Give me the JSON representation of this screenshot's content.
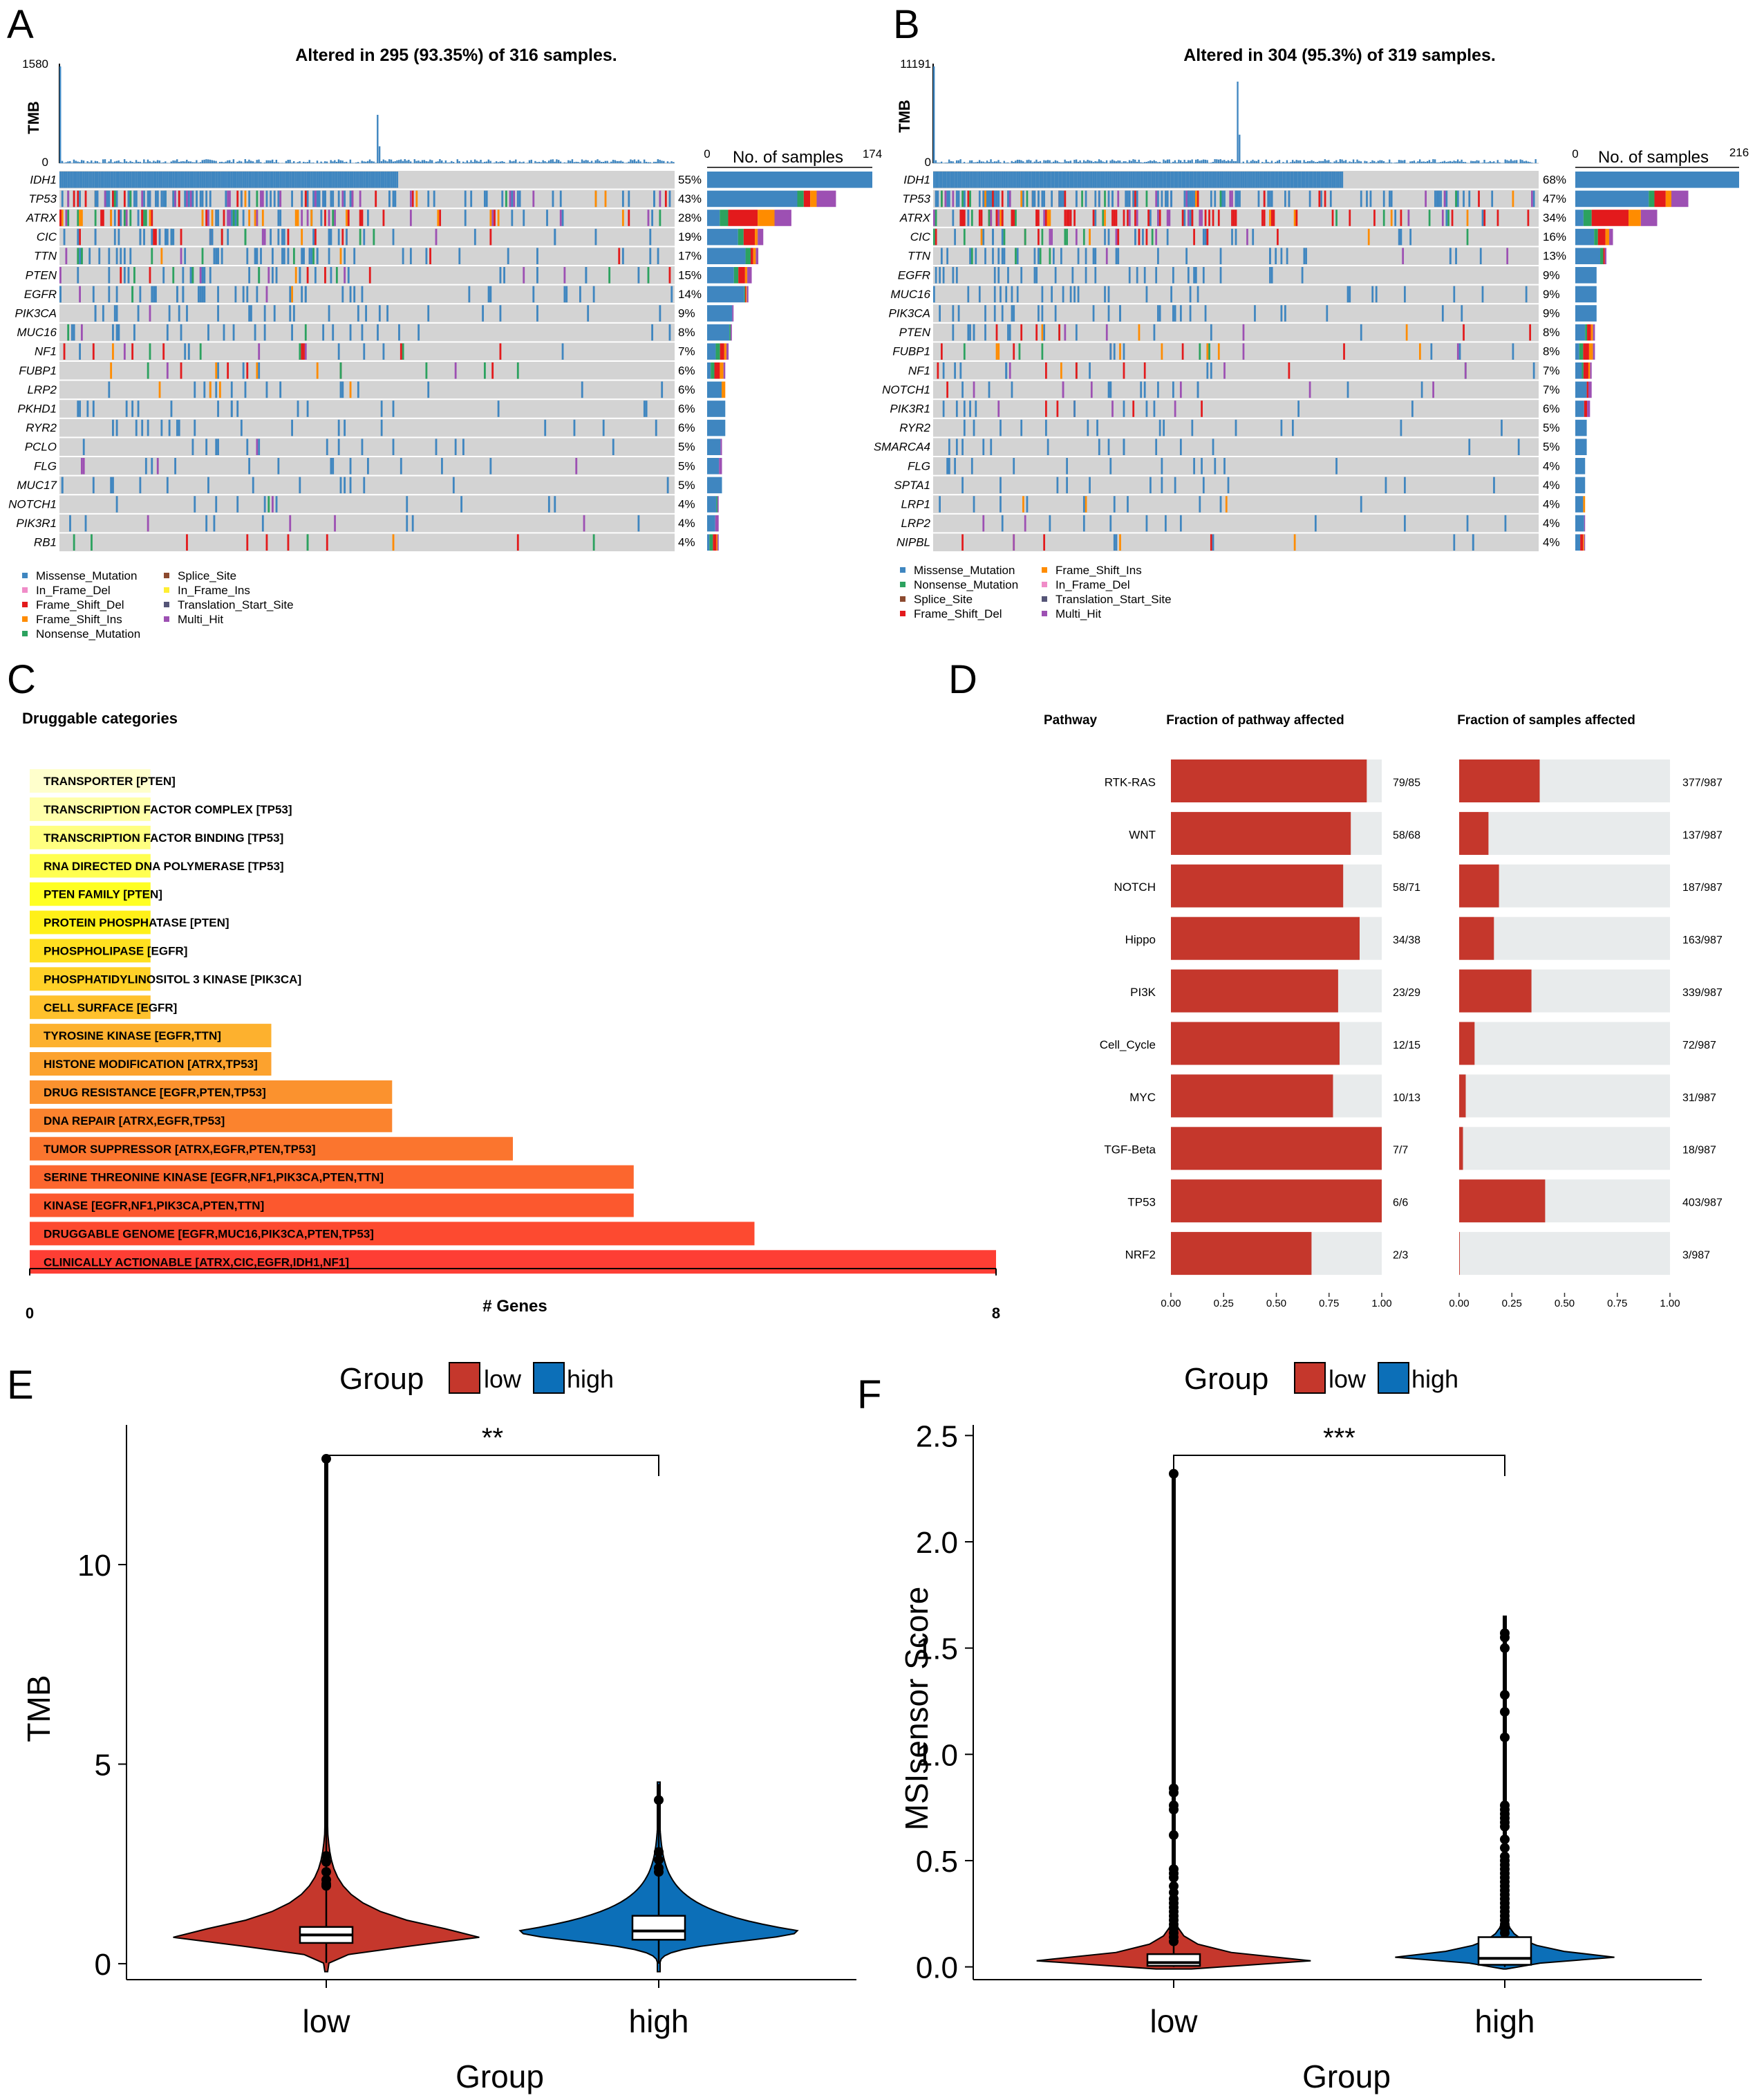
{
  "figure": {
    "panel_letters": [
      "A",
      "B",
      "C",
      "D",
      "E",
      "F"
    ],
    "colors": {
      "missense": "#3f86c0",
      "nonsense": "#2ca25f",
      "splice": "#8c4a2f",
      "frameshift_del": "#e31a1c",
      "frameshift_ins": "#ff8c00",
      "inframe_del": "#f08cc8",
      "inframe_ins": "#ffee33",
      "translation_start": "#555577",
      "multi_hit": "#9d50b3",
      "grid_bg": "#d3d3d3",
      "pathway_red": "#c5372c",
      "pathway_bg": "#e8ebec",
      "violin_low": "#c5372c",
      "violin_high": "#0c6fb8"
    }
  },
  "chart_data": [
    {
      "panel": "A",
      "type": "table",
      "title": "Altered in 295 (93.35%) of 316 samples.",
      "tmb_label": "TMB",
      "tmb_axis": [
        "1580",
        "0"
      ],
      "sample_axis": [
        "0",
        "174"
      ],
      "sample_axis_label": "No. of samples",
      "genes": [
        {
          "name": "IDH1",
          "pct": "55%",
          "frac": 1.0,
          "comp": [
            1,
            0,
            0,
            0,
            0
          ]
        },
        {
          "name": "TP53",
          "pct": "43%",
          "frac": 0.78,
          "comp": [
            0.7,
            0.05,
            0.05,
            0.05,
            0.15
          ]
        },
        {
          "name": "ATRX",
          "pct": "28%",
          "frac": 0.51,
          "comp": [
            0.15,
            0.1,
            0.35,
            0.2,
            0.2
          ]
        },
        {
          "name": "CIC",
          "pct": "19%",
          "frac": 0.34,
          "comp": [
            0.55,
            0.1,
            0.2,
            0.05,
            0.1
          ]
        },
        {
          "name": "TTN",
          "pct": "17%",
          "frac": 0.31,
          "comp": [
            0.75,
            0.1,
            0.05,
            0.05,
            0.05
          ]
        },
        {
          "name": "PTEN",
          "pct": "15%",
          "frac": 0.27,
          "comp": [
            0.6,
            0.1,
            0.15,
            0.05,
            0.1
          ]
        },
        {
          "name": "EGFR",
          "pct": "14%",
          "frac": 0.25,
          "comp": [
            0.9,
            0.02,
            0.02,
            0.02,
            0.04
          ]
        },
        {
          "name": "PIK3CA",
          "pct": "9%",
          "frac": 0.16,
          "comp": [
            0.95,
            0,
            0,
            0,
            0.05
          ]
        },
        {
          "name": "MUC16",
          "pct": "8%",
          "frac": 0.15,
          "comp": [
            0.9,
            0.05,
            0,
            0,
            0.05
          ]
        },
        {
          "name": "NF1",
          "pct": "7%",
          "frac": 0.13,
          "comp": [
            0.4,
            0.2,
            0.2,
            0.1,
            0.1
          ]
        },
        {
          "name": "FUBP1",
          "pct": "6%",
          "frac": 0.11,
          "comp": [
            0.2,
            0.2,
            0.3,
            0.2,
            0.1
          ]
        },
        {
          "name": "LRP2",
          "pct": "6%",
          "frac": 0.11,
          "comp": [
            0.8,
            0,
            0,
            0.2,
            0
          ]
        },
        {
          "name": "PKHD1",
          "pct": "6%",
          "frac": 0.11,
          "comp": [
            1,
            0,
            0,
            0,
            0
          ]
        },
        {
          "name": "RYR2",
          "pct": "6%",
          "frac": 0.11,
          "comp": [
            1,
            0,
            0,
            0,
            0
          ]
        },
        {
          "name": "PCLO",
          "pct": "5%",
          "frac": 0.09,
          "comp": [
            0.9,
            0,
            0,
            0,
            0.1
          ]
        },
        {
          "name": "FLG",
          "pct": "5%",
          "frac": 0.09,
          "comp": [
            0.8,
            0,
            0,
            0,
            0.2
          ]
        },
        {
          "name": "MUC17",
          "pct": "5%",
          "frac": 0.09,
          "comp": [
            1,
            0,
            0,
            0,
            0
          ]
        },
        {
          "name": "NOTCH1",
          "pct": "4%",
          "frac": 0.07,
          "comp": [
            0.8,
            0.1,
            0,
            0,
            0.1
          ]
        },
        {
          "name": "PIK3R1",
          "pct": "4%",
          "frac": 0.07,
          "comp": [
            0.7,
            0,
            0,
            0,
            0.3
          ]
        },
        {
          "name": "RB1",
          "pct": "4%",
          "frac": 0.07,
          "comp": [
            0.2,
            0.3,
            0.3,
            0.1,
            0.1
          ]
        }
      ],
      "legend": [
        "Missense_Mutation",
        "In_Frame_Del",
        "Frame_Shift_Del",
        "Frame_Shift_Ins",
        "Nonsense_Mutation",
        "Splice_Site",
        "In_Frame_Ins",
        "Translation_Start_Site",
        "Multi_Hit"
      ]
    },
    {
      "panel": "B",
      "type": "table",
      "title": "Altered in 304 (95.3%) of 319 samples.",
      "tmb_label": "TMB",
      "tmb_axis": [
        "11191",
        "0"
      ],
      "sample_axis": [
        "0",
        "216"
      ],
      "sample_axis_label": "No. of samples",
      "genes": [
        {
          "name": "IDH1",
          "pct": "68%",
          "frac": 1.0,
          "comp": [
            1,
            0,
            0,
            0,
            0
          ]
        },
        {
          "name": "TP53",
          "pct": "47%",
          "frac": 0.69,
          "comp": [
            0.65,
            0.05,
            0.1,
            0.05,
            0.15
          ]
        },
        {
          "name": "ATRX",
          "pct": "34%",
          "frac": 0.5,
          "comp": [
            0.1,
            0.1,
            0.45,
            0.15,
            0.2
          ]
        },
        {
          "name": "CIC",
          "pct": "16%",
          "frac": 0.23,
          "comp": [
            0.5,
            0.1,
            0.2,
            0.1,
            0.1
          ]
        },
        {
          "name": "TTN",
          "pct": "13%",
          "frac": 0.19,
          "comp": [
            0.8,
            0.1,
            0.05,
            0,
            0.05
          ]
        },
        {
          "name": "EGFR",
          "pct": "9%",
          "frac": 0.13,
          "comp": [
            1,
            0,
            0,
            0,
            0
          ]
        },
        {
          "name": "MUC16",
          "pct": "9%",
          "frac": 0.13,
          "comp": [
            1,
            0,
            0,
            0,
            0
          ]
        },
        {
          "name": "PIK3CA",
          "pct": "9%",
          "frac": 0.13,
          "comp": [
            1,
            0,
            0,
            0,
            0
          ]
        },
        {
          "name": "PTEN",
          "pct": "8%",
          "frac": 0.12,
          "comp": [
            0.5,
            0.1,
            0.2,
            0.1,
            0.1
          ]
        },
        {
          "name": "FUBP1",
          "pct": "8%",
          "frac": 0.12,
          "comp": [
            0.2,
            0.2,
            0.3,
            0.2,
            0.1
          ]
        },
        {
          "name": "NF1",
          "pct": "7%",
          "frac": 0.1,
          "comp": [
            0.4,
            0.1,
            0.3,
            0.1,
            0.1
          ]
        },
        {
          "name": "NOTCH1",
          "pct": "7%",
          "frac": 0.1,
          "comp": [
            0.7,
            0,
            0.1,
            0,
            0.2
          ]
        },
        {
          "name": "PIK3R1",
          "pct": "6%",
          "frac": 0.09,
          "comp": [
            0.6,
            0,
            0.2,
            0,
            0.2
          ]
        },
        {
          "name": "RYR2",
          "pct": "5%",
          "frac": 0.07,
          "comp": [
            1,
            0,
            0,
            0,
            0
          ]
        },
        {
          "name": "SMARCA4",
          "pct": "5%",
          "frac": 0.07,
          "comp": [
            1,
            0,
            0,
            0,
            0
          ]
        },
        {
          "name": "FLG",
          "pct": "4%",
          "frac": 0.06,
          "comp": [
            1,
            0,
            0,
            0,
            0
          ]
        },
        {
          "name": "SPTA1",
          "pct": "4%",
          "frac": 0.06,
          "comp": [
            1,
            0,
            0,
            0,
            0
          ]
        },
        {
          "name": "LRP1",
          "pct": "4%",
          "frac": 0.06,
          "comp": [
            0.8,
            0,
            0,
            0.2,
            0
          ]
        },
        {
          "name": "LRP2",
          "pct": "4%",
          "frac": 0.06,
          "comp": [
            0.9,
            0,
            0,
            0,
            0.1
          ]
        },
        {
          "name": "NIPBL",
          "pct": "4%",
          "frac": 0.06,
          "comp": [
            0.5,
            0,
            0.3,
            0.1,
            0.1
          ]
        }
      ],
      "legend": [
        "Missense_Mutation",
        "Nonsense_Mutation",
        "Splice_Site",
        "Frame_Shift_Del",
        "Frame_Shift_Ins",
        "In_Frame_Del",
        "Translation_Start_Site",
        "Multi_Hit"
      ]
    },
    {
      "panel": "C",
      "type": "bar",
      "title": "Druggable categories",
      "xlabel": "# Genes",
      "xlim": [
        0,
        8
      ],
      "x_ticks": [
        "0",
        "8"
      ],
      "bars": [
        {
          "label": "TRANSPORTER [PTEN]",
          "value": 1,
          "color": "#ffffcc"
        },
        {
          "label": "TRANSCRIPTION FACTOR COMPLEX [TP53]",
          "value": 1,
          "color": "#ffffaa"
        },
        {
          "label": "TRANSCRIPTION FACTOR BINDING [TP53]",
          "value": 1,
          "color": "#ffff80"
        },
        {
          "label": "RNA DIRECTED DNA POLYMERASE [TP53]",
          "value": 1,
          "color": "#ffff50"
        },
        {
          "label": "PTEN FAMILY [PTEN]",
          "value": 1,
          "color": "#ffff22"
        },
        {
          "label": "PROTEIN PHOSPHATASE [PTEN]",
          "value": 1,
          "color": "#fff018"
        },
        {
          "label": "PHOSPHOLIPASE [EGFR]",
          "value": 1,
          "color": "#ffe020"
        },
        {
          "label": "PHOSPHATIDYLINOSITOL 3 KINASE [PIK3CA]",
          "value": 1,
          "color": "#ffd128"
        },
        {
          "label": "CELL SURFACE [EGFR]",
          "value": 1,
          "color": "#ffc12c"
        },
        {
          "label": "TYROSINE KINASE [EGFR,TTN]",
          "value": 2,
          "color": "#fdb12e"
        },
        {
          "label": "HISTONE MODIFICATION [ATRX,TP53]",
          "value": 2,
          "color": "#fca22e"
        },
        {
          "label": "DRUG RESISTANCE [EGFR,PTEN,TP53]",
          "value": 3,
          "color": "#fb922e"
        },
        {
          "label": "DNA REPAIR [ATRX,EGFR,TP53]",
          "value": 3,
          "color": "#fb832e"
        },
        {
          "label": "TUMOR SUPPRESSOR [ATRX,EGFR,PTEN,TP53]",
          "value": 4,
          "color": "#fb752e"
        },
        {
          "label": "SERINE THREONINE KINASE [EGFR,NF1,PIK3CA,PTEN,TTN]",
          "value": 5,
          "color": "#fc662e"
        },
        {
          "label": "KINASE [EGFR,NF1,PIK3CA,PTEN,TTN]",
          "value": 5,
          "color": "#fc582e"
        },
        {
          "label": "DRUGGABLE GENOME [EGFR,MUC16,PIK3CA,PTEN,TP53]",
          "value": 6,
          "color": "#fd4a30"
        },
        {
          "label": "CLINICALLY ACTIONABLE [ATRX,CIC,EGFR,IDH1,NF1]",
          "value": 8,
          "color": "#fe3e34"
        }
      ]
    },
    {
      "panel": "D",
      "type": "bar",
      "header_pathway": "Pathway",
      "header_fraction_pathway": "Fraction of pathway affected",
      "header_fraction_samples": "Fraction of samples affected",
      "x_ticks": [
        "0.00",
        "0.25",
        "0.50",
        "0.75",
        "1.00"
      ],
      "pathways": [
        {
          "name": "RTK-RAS",
          "pathway_frac": 0.929,
          "pathway_label": "79/85",
          "sample_frac": 0.382,
          "sample_label": "377/987"
        },
        {
          "name": "WNT",
          "pathway_frac": 0.853,
          "pathway_label": "58/68",
          "sample_frac": 0.139,
          "sample_label": "137/987"
        },
        {
          "name": "NOTCH",
          "pathway_frac": 0.817,
          "pathway_label": "58/71",
          "sample_frac": 0.189,
          "sample_label": "187/987"
        },
        {
          "name": "Hippo",
          "pathway_frac": 0.895,
          "pathway_label": "34/38",
          "sample_frac": 0.165,
          "sample_label": "163/987"
        },
        {
          "name": "PI3K",
          "pathway_frac": 0.793,
          "pathway_label": "23/29",
          "sample_frac": 0.343,
          "sample_label": "339/987"
        },
        {
          "name": "Cell_Cycle",
          "pathway_frac": 0.8,
          "pathway_label": "12/15",
          "sample_frac": 0.073,
          "sample_label": "72/987"
        },
        {
          "name": "MYC",
          "pathway_frac": 0.769,
          "pathway_label": "10/13",
          "sample_frac": 0.031,
          "sample_label": "31/987"
        },
        {
          "name": "TGF-Beta",
          "pathway_frac": 1.0,
          "pathway_label": "7/7",
          "sample_frac": 0.018,
          "sample_label": "18/987"
        },
        {
          "name": "TP53",
          "pathway_frac": 1.0,
          "pathway_label": "6/6",
          "sample_frac": 0.408,
          "sample_label": "403/987"
        },
        {
          "name": "NRF2",
          "pathway_frac": 0.667,
          "pathway_label": "2/3",
          "sample_frac": 0.003,
          "sample_label": "3/987"
        }
      ]
    },
    {
      "panel": "E",
      "type": "violin",
      "legend_title": "Group",
      "legend_entries": [
        "low",
        "high"
      ],
      "xlabel": "Group",
      "ylabel": "TMB",
      "categories": [
        "low",
        "high"
      ],
      "ylim": [
        -0.4,
        13.5
      ],
      "y_ticks": [
        0,
        5,
        10
      ],
      "significance": "**",
      "groups": [
        {
          "name": "low",
          "q1": 0.52,
          "median": 0.72,
          "q3": 0.92,
          "whisker_lo": 0.02,
          "whisker_hi": 12.7,
          "outliers": [
            12.65,
            2.7,
            2.55,
            2.3,
            2.1,
            2.0,
            1.95
          ],
          "violin_max": 12.7,
          "violin_half_width": 0.95
        },
        {
          "name": "high",
          "q1": 0.6,
          "median": 0.82,
          "q3": 1.2,
          "whisker_lo": 0.0,
          "whisker_hi": 4.5,
          "outliers": [
            4.1,
            2.8,
            2.6,
            2.4,
            2.3
          ],
          "violin_max": 4.55,
          "violin_half_width": 0.85
        }
      ]
    },
    {
      "panel": "F",
      "type": "violin",
      "legend_title": "Group",
      "legend_entries": [
        "low",
        "high"
      ],
      "xlabel": "Group",
      "ylabel": "MSIsensor Score",
      "categories": [
        "low",
        "high"
      ],
      "ylim": [
        -0.06,
        2.55
      ],
      "y_ticks": [
        0.0,
        0.5,
        1.0,
        1.5,
        2.0,
        2.5
      ],
      "y_tick_labels": [
        "0.0",
        "0.5",
        "1.0",
        "1.5",
        "2.0",
        "2.5"
      ],
      "significance": "***",
      "groups": [
        {
          "name": "low",
          "q1": 0.005,
          "median": 0.02,
          "q3": 0.06,
          "whisker_lo": 0.0,
          "whisker_hi": 2.33,
          "outliers": [
            2.32,
            0.84,
            0.82,
            0.76,
            0.74,
            0.62,
            0.46,
            0.44,
            0.42,
            0.38,
            0.35,
            0.32,
            0.3,
            0.28,
            0.26,
            0.24,
            0.22,
            0.2,
            0.18,
            0.16,
            0.14,
            0.12
          ],
          "violin_max": 2.33,
          "violin_half_width": 0.95
        },
        {
          "name": "high",
          "q1": 0.01,
          "median": 0.04,
          "q3": 0.14,
          "whisker_lo": 0.0,
          "whisker_hi": 1.65,
          "outliers": [
            1.57,
            1.55,
            1.5,
            1.28,
            1.2,
            1.08,
            0.76,
            0.74,
            0.72,
            0.7,
            0.68,
            0.66,
            0.6,
            0.56,
            0.52,
            0.5,
            0.48,
            0.46,
            0.44,
            0.42,
            0.4,
            0.38,
            0.36,
            0.34,
            0.32,
            0.3,
            0.28,
            0.26,
            0.24,
            0.22,
            0.2,
            0.18,
            0.16
          ],
          "violin_max": 1.65,
          "violin_half_width": 0.7
        }
      ]
    }
  ]
}
